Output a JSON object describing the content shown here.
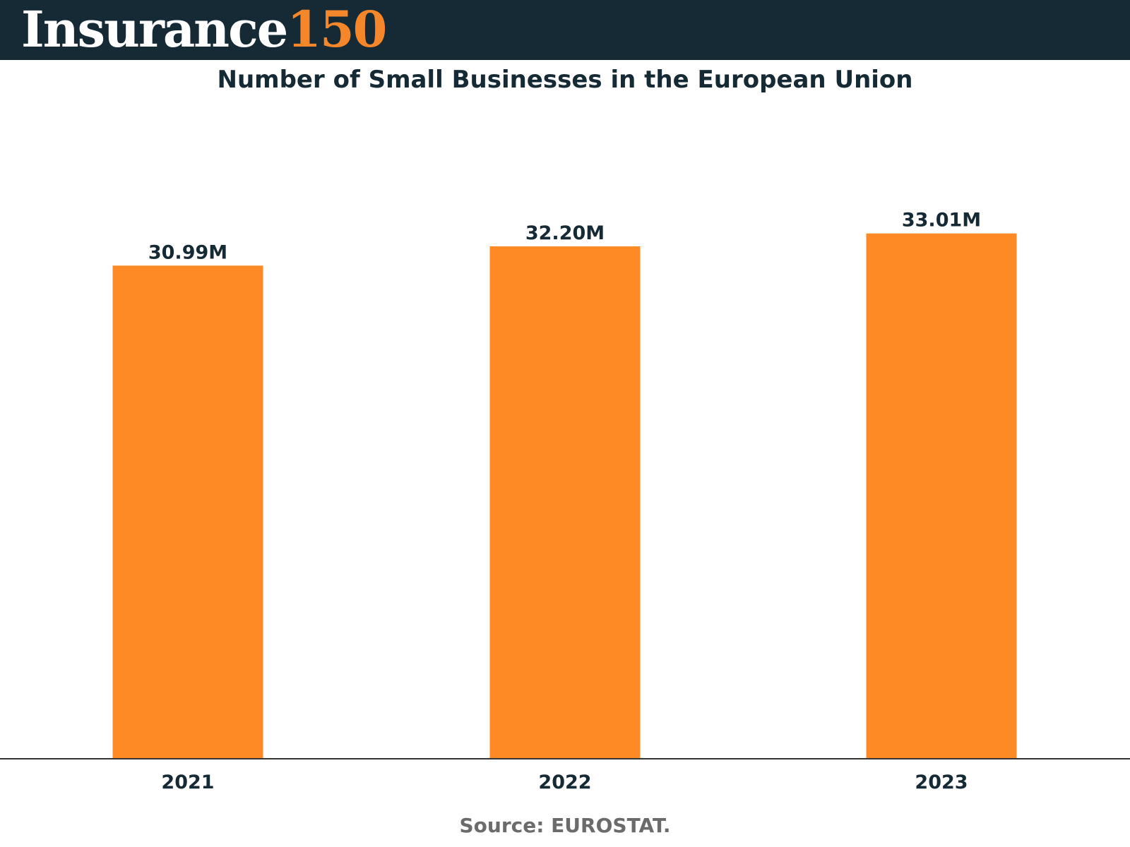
{
  "header": {
    "logo_word": "Insurance",
    "logo_number": "150",
    "background_color": "#162a35",
    "accent_color": "#f5862a"
  },
  "chart_data": {
    "type": "bar",
    "title": "Number of Small Businesses in the European Union",
    "categories": [
      "2021",
      "2022",
      "2023"
    ],
    "values": [
      30.99,
      32.2,
      33.01
    ],
    "data_labels": [
      "30.99M",
      "32.20M",
      "33.01M"
    ],
    "unit": "M",
    "ylim": [
      0,
      37.7
    ],
    "bar_color": "#fd8a25",
    "grid": false,
    "legend": "none"
  },
  "source": "Source: EUROSTAT."
}
